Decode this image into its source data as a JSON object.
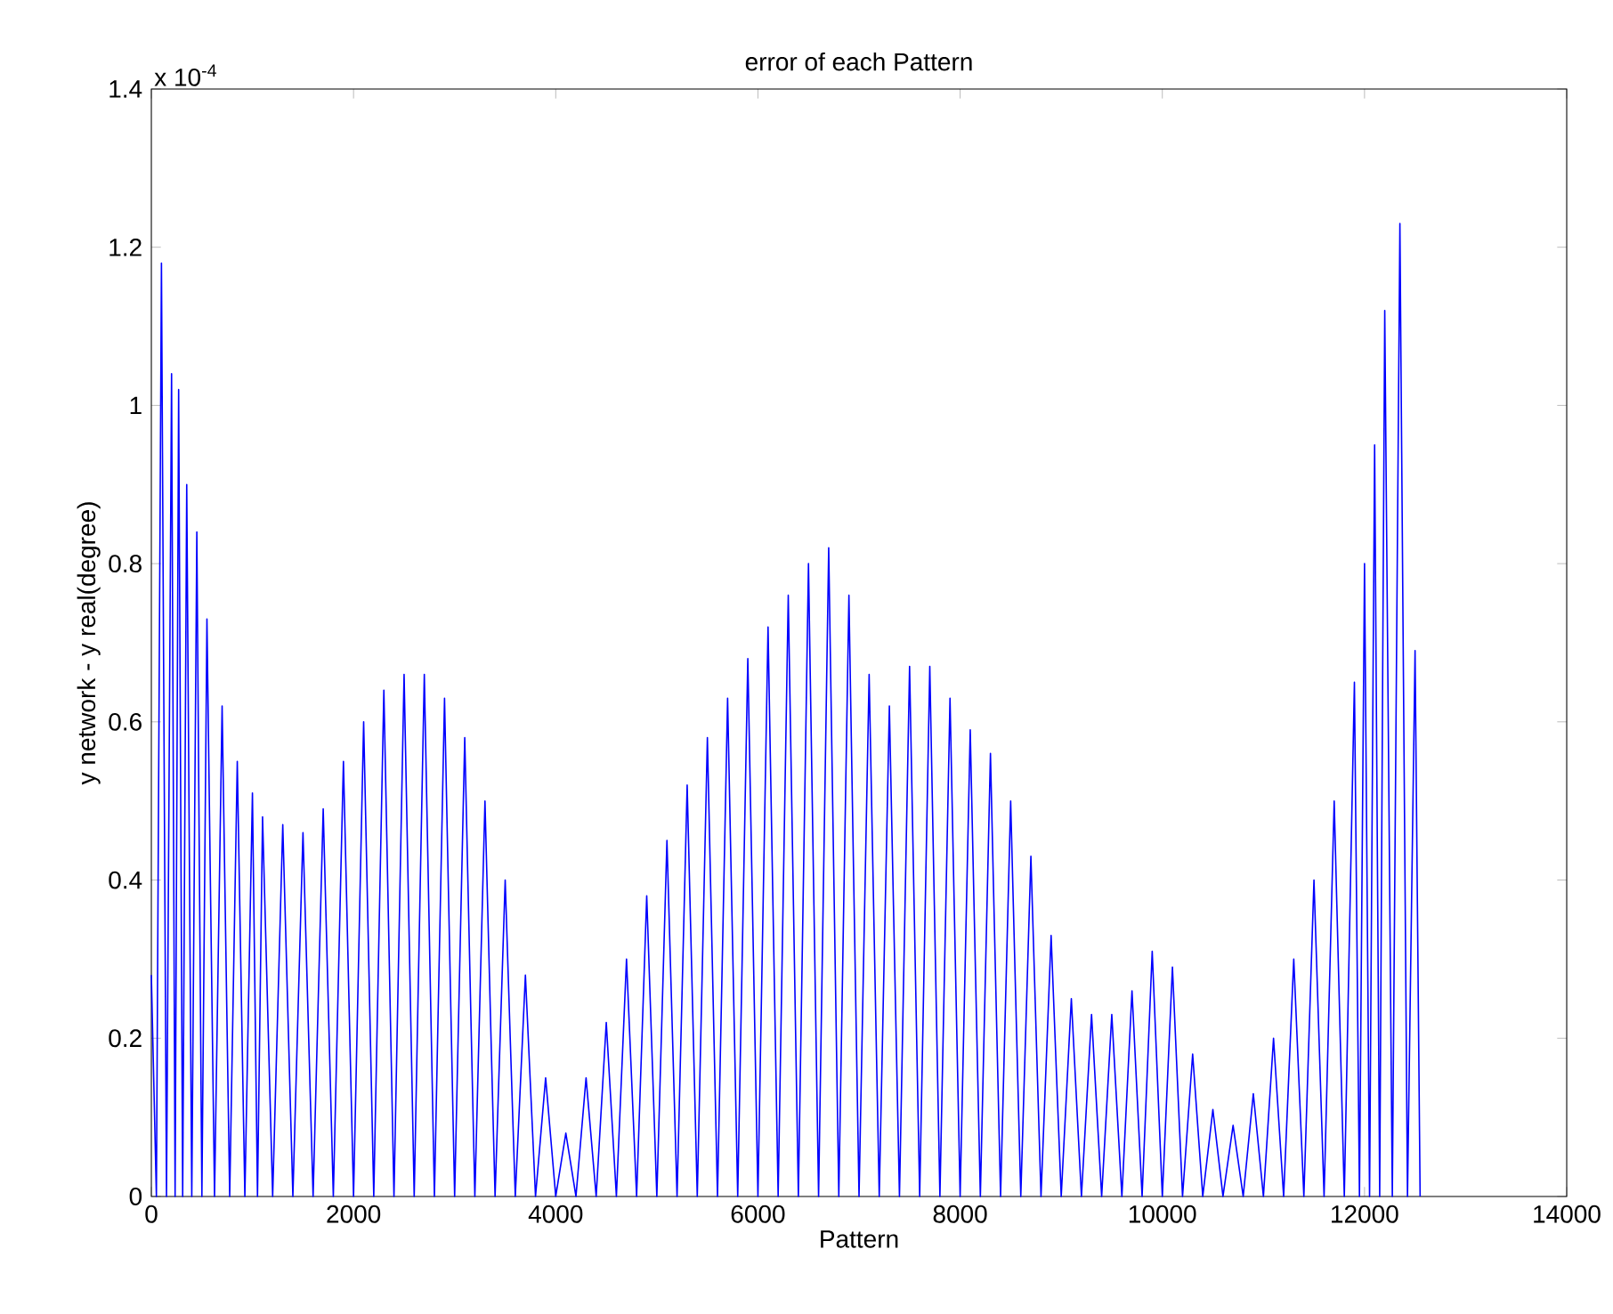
{
  "chart_data": {
    "type": "line",
    "title": "error of each Pattern",
    "xlabel": "Pattern",
    "ylabel": "y network - y real(degree)",
    "annotations": [
      "x 10$^{-4}$"
    ],
    "x": [
      0,
      50,
      100,
      150,
      200,
      235,
      270,
      310,
      350,
      400,
      450,
      500,
      550,
      625,
      700,
      775,
      850,
      925,
      1000,
      1050,
      1100,
      1200,
      1300,
      1400,
      1500,
      1600,
      1700,
      1800,
      1900,
      2000,
      2100,
      2200,
      2300,
      2400,
      2500,
      2600,
      2700,
      2800,
      2900,
      3000,
      3100,
      3200,
      3300,
      3400,
      3500,
      3600,
      3700,
      3800,
      3900,
      4000,
      4100,
      4200,
      4300,
      4400,
      4500,
      4600,
      4700,
      4800,
      4900,
      5000,
      5100,
      5200,
      5300,
      5400,
      5500,
      5600,
      5700,
      5800,
      5900,
      6000,
      6100,
      6200,
      6300,
      6400,
      6500,
      6600,
      6700,
      6800,
      6900,
      7000,
      7100,
      7200,
      7300,
      7400,
      7500,
      7600,
      7700,
      7800,
      7900,
      8000,
      8100,
      8200,
      8300,
      8400,
      8500,
      8600,
      8700,
      8800,
      8900,
      9000,
      9100,
      9200,
      9300,
      9400,
      9500,
      9600,
      9700,
      9800,
      9900,
      10000,
      10100,
      10200,
      10300,
      10400,
      10500,
      10600,
      10700,
      10800,
      10900,
      11000,
      11100,
      11200,
      11300,
      11400,
      11500,
      11600,
      11700,
      11800,
      11900,
      11950,
      12000,
      12050,
      12100,
      12150,
      12200,
      12275,
      12350,
      12425,
      12500,
      12550
    ],
    "series": [
      {
        "color": "#0000ff",
        "values": [
          0.28,
          0,
          1.18,
          0,
          1.04,
          0,
          1.02,
          0,
          0.9,
          0,
          0.84,
          0,
          0.73,
          0,
          0.62,
          0,
          0.55,
          0,
          0.51,
          0,
          0.48,
          0,
          0.47,
          0,
          0.46,
          0,
          0.49,
          0,
          0.55,
          0,
          0.6,
          0,
          0.64,
          0,
          0.66,
          0,
          0.66,
          0,
          0.63,
          0,
          0.58,
          0,
          0.5,
          0,
          0.4,
          0,
          0.28,
          0,
          0.15,
          0,
          0.08,
          0,
          0.15,
          0,
          0.22,
          0,
          0.3,
          0,
          0.38,
          0,
          0.45,
          0,
          0.52,
          0,
          0.58,
          0,
          0.63,
          0,
          0.68,
          0,
          0.72,
          0,
          0.76,
          0,
          0.8,
          0,
          0.82,
          0,
          0.76,
          0,
          0.66,
          0,
          0.62,
          0,
          0.67,
          0,
          0.67,
          0,
          0.63,
          0,
          0.59,
          0,
          0.56,
          0,
          0.5,
          0,
          0.43,
          0,
          0.33,
          0,
          0.25,
          0,
          0.23,
          0,
          0.23,
          0,
          0.26,
          0,
          0.31,
          0,
          0.29,
          0,
          0.18,
          0,
          0.11,
          0,
          0.09,
          0,
          0.13,
          0,
          0.2,
          0,
          0.3,
          0,
          0.4,
          0,
          0.5,
          0,
          0.65,
          0,
          0.8,
          0,
          0.95,
          0,
          1.12,
          0,
          1.23,
          0,
          0.69,
          0
        ]
      }
    ],
    "xlim": [
      0,
      14000
    ],
    "xticks": [
      0,
      2000,
      4000,
      6000,
      8000,
      10000,
      12000,
      14000
    ],
    "ylim": [
      0,
      1.4
    ],
    "yticks": [
      0,
      0.2,
      0.4,
      0.6,
      0.8,
      1,
      1.2,
      1.4
    ],
    "grid": false,
    "marker": "none",
    "line_style": "solid"
  }
}
